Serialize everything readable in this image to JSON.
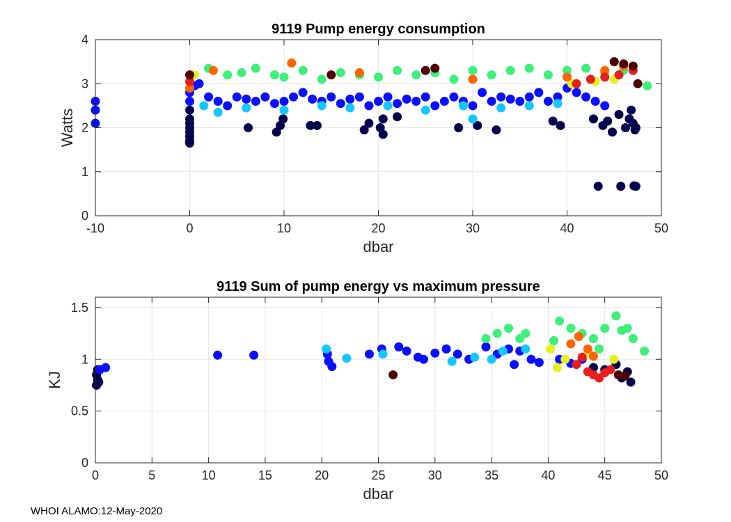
{
  "footer": "WHOI ALAMO:12-May-2020",
  "chart_data": [
    {
      "type": "scatter",
      "title": "9119 Pump energy consumption",
      "xlabel": "dbar",
      "ylabel": "Watts",
      "xlim": [
        -10,
        50
      ],
      "ylim": [
        0,
        4
      ],
      "xticks": [
        -10,
        0,
        10,
        20,
        30,
        40,
        50
      ],
      "yticks": [
        0,
        1,
        2,
        3,
        4
      ],
      "grid": true,
      "series": [
        {
          "name": "navy",
          "color": "#00004d",
          "points": [
            [
              0,
              1.7
            ],
            [
              0,
              1.8
            ],
            [
              0,
              1.9
            ],
            [
              0,
              2.0
            ],
            [
              0,
              2.1
            ],
            [
              0,
              2.2
            ],
            [
              0,
              2.4
            ],
            [
              0,
              1.65
            ],
            [
              6.2,
              2.0
            ],
            [
              9.2,
              1.9
            ],
            [
              9.6,
              2.05
            ],
            [
              9.9,
              2.2
            ],
            [
              12.8,
              2.05
            ],
            [
              13.5,
              2.05
            ],
            [
              18.5,
              1.95
            ],
            [
              19.0,
              2.1
            ],
            [
              20.2,
              2.0
            ],
            [
              20.5,
              1.85
            ],
            [
              20.5,
              2.2
            ],
            [
              22.0,
              2.25
            ],
            [
              28.5,
              2.0
            ],
            [
              30.5,
              2.05
            ],
            [
              32.5,
              1.95
            ],
            [
              38.5,
              2.15
            ],
            [
              39.3,
              2.05
            ],
            [
              42.8,
              2.2
            ],
            [
              43.3,
              0.67
            ],
            [
              43.8,
              2.05
            ],
            [
              44.3,
              2.15
            ],
            [
              44.8,
              1.9
            ],
            [
              45.5,
              2.3
            ],
            [
              45.7,
              0.67
            ],
            [
              46.2,
              2.0
            ],
            [
              46.6,
              2.2
            ],
            [
              46.8,
              2.4
            ],
            [
              47.0,
              2.1
            ],
            [
              47.2,
              1.95
            ],
            [
              47.3,
              2.0
            ],
            [
              47.1,
              0.68
            ],
            [
              47.3,
              0.67
            ]
          ]
        },
        {
          "name": "blue",
          "color": "#0a10ff",
          "points": [
            [
              -10,
              2.6
            ],
            [
              -10,
              2.4
            ],
            [
              -10,
              2.1
            ],
            [
              0,
              2.6
            ],
            [
              0,
              2.8
            ],
            [
              0.5,
              2.95
            ],
            [
              1,
              3.0
            ],
            [
              2,
              2.7
            ],
            [
              3,
              2.6
            ],
            [
              4,
              2.5
            ],
            [
              5,
              2.7
            ],
            [
              6,
              2.65
            ],
            [
              7,
              2.6
            ],
            [
              8,
              2.7
            ],
            [
              9,
              2.55
            ],
            [
              10,
              2.6
            ],
            [
              11,
              2.7
            ],
            [
              12,
              2.8
            ],
            [
              13,
              2.65
            ],
            [
              14,
              2.6
            ],
            [
              15,
              2.7
            ],
            [
              16,
              2.55
            ],
            [
              17,
              2.65
            ],
            [
              18,
              2.7
            ],
            [
              19,
              2.5
            ],
            [
              20,
              2.6
            ],
            [
              21,
              2.7
            ],
            [
              22,
              2.55
            ],
            [
              23,
              2.65
            ],
            [
              24,
              2.6
            ],
            [
              25,
              2.7
            ],
            [
              26,
              2.5
            ],
            [
              27,
              2.6
            ],
            [
              28,
              2.7
            ],
            [
              29,
              2.6
            ],
            [
              30,
              2.5
            ],
            [
              31,
              2.8
            ],
            [
              32,
              2.6
            ],
            [
              33,
              2.7
            ],
            [
              34,
              2.65
            ],
            [
              35,
              2.6
            ],
            [
              36,
              2.7
            ],
            [
              37,
              2.8
            ],
            [
              38,
              2.6
            ],
            [
              39,
              2.7
            ],
            [
              40,
              2.9
            ],
            [
              41,
              2.8
            ],
            [
              42,
              2.7
            ],
            [
              43,
              2.6
            ],
            [
              44,
              2.5
            ]
          ]
        },
        {
          "name": "cyan",
          "color": "#14c8ff",
          "points": [
            [
              1.5,
              2.5
            ],
            [
              3,
              2.35
            ],
            [
              6,
              2.45
            ],
            [
              10,
              2.4
            ],
            [
              14,
              2.5
            ],
            [
              17,
              2.45
            ],
            [
              21,
              2.5
            ],
            [
              25,
              2.4
            ],
            [
              29,
              2.5
            ],
            [
              30,
              2.2
            ],
            [
              33,
              2.45
            ],
            [
              36,
              2.5
            ],
            [
              39,
              2.55
            ]
          ]
        },
        {
          "name": "green",
          "color": "#3cf07a",
          "points": [
            [
              2,
              3.35
            ],
            [
              4,
              3.2
            ],
            [
              5.5,
              3.25
            ],
            [
              7,
              3.35
            ],
            [
              9,
              3.2
            ],
            [
              10,
              3.15
            ],
            [
              12,
              3.3
            ],
            [
              14,
              3.1
            ],
            [
              16,
              3.25
            ],
            [
              18,
              3.2
            ],
            [
              20,
              3.15
            ],
            [
              22,
              3.3
            ],
            [
              24,
              3.2
            ],
            [
              26,
              3.25
            ],
            [
              28,
              3.1
            ],
            [
              30,
              3.3
            ],
            [
              32,
              3.2
            ],
            [
              34,
              3.3
            ],
            [
              36,
              3.35
            ],
            [
              38,
              3.2
            ],
            [
              40,
              3.3
            ],
            [
              42,
              3.35
            ],
            [
              44,
              3.25
            ],
            [
              46,
              3.3
            ],
            [
              48.5,
              2.95
            ]
          ]
        },
        {
          "name": "yellow",
          "color": "#e6f01e",
          "points": [
            [
              0.5,
              3.2
            ],
            [
              40.5,
              3.0
            ],
            [
              43,
              3.05
            ],
            [
              45,
              3.1
            ]
          ]
        },
        {
          "name": "orange",
          "color": "#ff6400",
          "points": [
            [
              0,
              2.9
            ],
            [
              2.5,
              3.3
            ],
            [
              10.8,
              3.47
            ],
            [
              18,
              3.25
            ],
            [
              30,
              3.1
            ],
            [
              40,
              3.15
            ],
            [
              44,
              3.3
            ],
            [
              46,
              3.4
            ]
          ]
        },
        {
          "name": "red",
          "color": "#e61e1e",
          "points": [
            [
              0,
              3.05
            ],
            [
              41,
              3.0
            ],
            [
              42.5,
              3.1
            ],
            [
              44,
              3.15
            ],
            [
              45.5,
              3.2
            ],
            [
              47,
              3.3
            ]
          ]
        },
        {
          "name": "darkred",
          "color": "#500000",
          "points": [
            [
              0,
              3.2
            ],
            [
              15,
              3.2
            ],
            [
              25,
              3.3
            ],
            [
              26,
              3.35
            ],
            [
              45,
              3.5
            ],
            [
              46,
              3.45
            ],
            [
              47,
              3.4
            ],
            [
              47.5,
              3.0
            ]
          ]
        }
      ]
    },
    {
      "type": "scatter",
      "title": "9119 Sum of pump energy vs maximum pressure",
      "xlabel": "dbar",
      "ylabel": "KJ",
      "xlim": [
        0,
        50
      ],
      "ylim": [
        0,
        1.6
      ],
      "xticks": [
        0,
        5,
        10,
        15,
        20,
        25,
        30,
        35,
        40,
        45,
        50
      ],
      "yticks": [
        0,
        0.5,
        1,
        1.5
      ],
      "grid": true,
      "series": [
        {
          "name": "navy",
          "color": "#00004d",
          "points": [
            [
              0.1,
              0.75
            ],
            [
              0.2,
              0.8
            ],
            [
              0.1,
              0.85
            ],
            [
              0.3,
              0.78
            ],
            [
              0.2,
              0.9
            ],
            [
              44,
              0.92
            ],
            [
              45,
              0.9
            ],
            [
              46,
              0.95
            ],
            [
              47,
              0.88
            ],
            [
              47.3,
              0.78
            ],
            [
              46.5,
              0.82
            ]
          ]
        },
        {
          "name": "blue",
          "color": "#0a10ff",
          "points": [
            [
              0.4,
              0.9
            ],
            [
              0.9,
              0.92
            ],
            [
              10.8,
              1.04
            ],
            [
              14,
              1.04
            ],
            [
              20.5,
              1.05
            ],
            [
              20.6,
              0.98
            ],
            [
              20.9,
              0.93
            ],
            [
              24.2,
              1.05
            ],
            [
              25.3,
              1.1
            ],
            [
              26.8,
              1.12
            ],
            [
              27.5,
              1.08
            ],
            [
              28.5,
              1.02
            ],
            [
              29,
              1.0
            ],
            [
              30,
              1.06
            ],
            [
              31,
              1.1
            ],
            [
              32,
              1.05
            ],
            [
              33,
              1.0
            ],
            [
              34.5,
              1.12
            ],
            [
              35.5,
              1.05
            ],
            [
              36.5,
              1.1
            ],
            [
              37.5,
              1.08
            ],
            [
              38.5,
              1.0
            ],
            [
              39.2,
              0.97
            ],
            [
              37,
              0.95
            ],
            [
              41,
              1.0
            ],
            [
              42,
              0.96
            ],
            [
              43,
              1.0
            ]
          ]
        },
        {
          "name": "cyan",
          "color": "#14c8ff",
          "points": [
            [
              20.4,
              1.1
            ],
            [
              22.2,
              1.01
            ],
            [
              25.4,
              1.05
            ],
            [
              31.5,
              0.98
            ],
            [
              33.5,
              1.02
            ],
            [
              35,
              1.0
            ],
            [
              36,
              1.08
            ],
            [
              38,
              1.1
            ]
          ]
        },
        {
          "name": "green",
          "color": "#3cf07a",
          "points": [
            [
              34.5,
              1.2
            ],
            [
              35.5,
              1.25
            ],
            [
              36.5,
              1.3
            ],
            [
              37.5,
              1.2
            ],
            [
              38,
              1.25
            ],
            [
              40.5,
              1.18
            ],
            [
              41,
              1.37
            ],
            [
              42,
              1.3
            ],
            [
              43,
              1.25
            ],
            [
              44,
              1.2
            ],
            [
              45,
              1.3
            ],
            [
              46,
              1.42
            ],
            [
              46.5,
              1.28
            ],
            [
              47,
              1.3
            ],
            [
              47.5,
              1.2
            ],
            [
              48.5,
              1.08
            ],
            [
              44.5,
              1.1
            ]
          ]
        },
        {
          "name": "yellow",
          "color": "#e6f01e",
          "points": [
            [
              40.2,
              1.1
            ],
            [
              40.8,
              0.92
            ],
            [
              41.5,
              1.0
            ],
            [
              43.5,
              1.05
            ],
            [
              45.8,
              1.0
            ]
          ]
        },
        {
          "name": "orange",
          "color": "#ff6400",
          "points": [
            [
              42,
              1.15
            ],
            [
              42.7,
              1.22
            ],
            [
              43.5,
              1.1
            ],
            [
              44,
              1.03
            ]
          ]
        },
        {
          "name": "red",
          "color": "#e61e1e",
          "points": [
            [
              42.5,
              0.95
            ],
            [
              43.5,
              0.88
            ],
            [
              44,
              0.85
            ],
            [
              44.5,
              0.82
            ],
            [
              45,
              0.87
            ],
            [
              45.5,
              0.9
            ],
            [
              43,
              1.02
            ]
          ]
        },
        {
          "name": "darkred",
          "color": "#500000",
          "points": [
            [
              26.3,
              0.85
            ],
            [
              46.2,
              0.85
            ],
            [
              46.8,
              0.84
            ]
          ]
        }
      ]
    }
  ]
}
